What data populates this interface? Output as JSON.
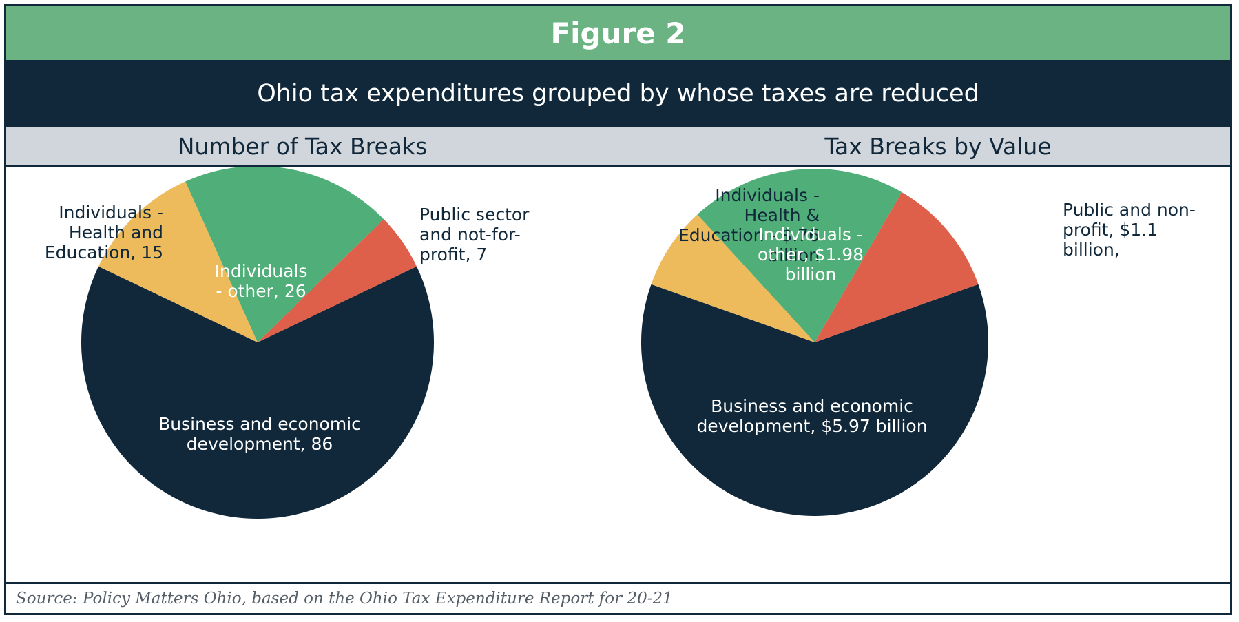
{
  "figure_title": "Figure 2",
  "subtitle": "Ohio tax expenditures grouped by whose taxes are reduced",
  "source": "Source: Policy Matters Ohio, based on the Ohio Tax Expenditure Report for 20-21",
  "colors": {
    "green_header": "#6bb382",
    "navy": "#10283a",
    "gray_header": "#d1d5dc",
    "business": "#10283a",
    "individuals_health": "#edbb5c",
    "individuals_other": "#50ae78",
    "public": "#df604a"
  },
  "chart_data": [
    {
      "type": "pie",
      "title": "Number of Tax Breaks",
      "slices": [
        {
          "name": "Business and economic development",
          "value": 86,
          "color": "#10283a",
          "label_lines": [
            "Business and economic",
            "development, 86"
          ]
        },
        {
          "name": "Individuals - Health and Education",
          "value": 15,
          "color": "#edbb5c",
          "label_lines": [
            "Individuals -",
            "Health and",
            "Education, 15"
          ]
        },
        {
          "name": "Individuals - other",
          "value": 26,
          "color": "#50ae78",
          "label_lines": [
            "Individuals",
            "- other, 26"
          ]
        },
        {
          "name": "Public sector and not-for-profit",
          "value": 7,
          "color": "#df604a",
          "label_lines": [
            "Public sector",
            "and not-for-",
            "profit, 7"
          ]
        }
      ]
    },
    {
      "type": "pie",
      "title": "Tax Breaks by Value",
      "unit": "billion",
      "slices": [
        {
          "name": "Business and economic development",
          "value": 5.97,
          "color": "#10283a",
          "label_lines": [
            "Business and economic",
            "development, $5.97 billion"
          ]
        },
        {
          "name": "Individuals - Health & Education",
          "value": 0.76,
          "color": "#edbb5c",
          "label_lines": [
            "Individuals -",
            "Health &",
            "Education - $.76",
            "billion"
          ]
        },
        {
          "name": "Individuals - other",
          "value": 1.98,
          "color": "#50ae78",
          "label_lines": [
            "Individuals -",
            "other, $1.98",
            "billion"
          ]
        },
        {
          "name": "Public and non-profit",
          "value": 1.1,
          "color": "#df604a",
          "label_lines": [
            "Public and non-",
            "profit, $1.1",
            "billion,"
          ]
        }
      ]
    }
  ]
}
